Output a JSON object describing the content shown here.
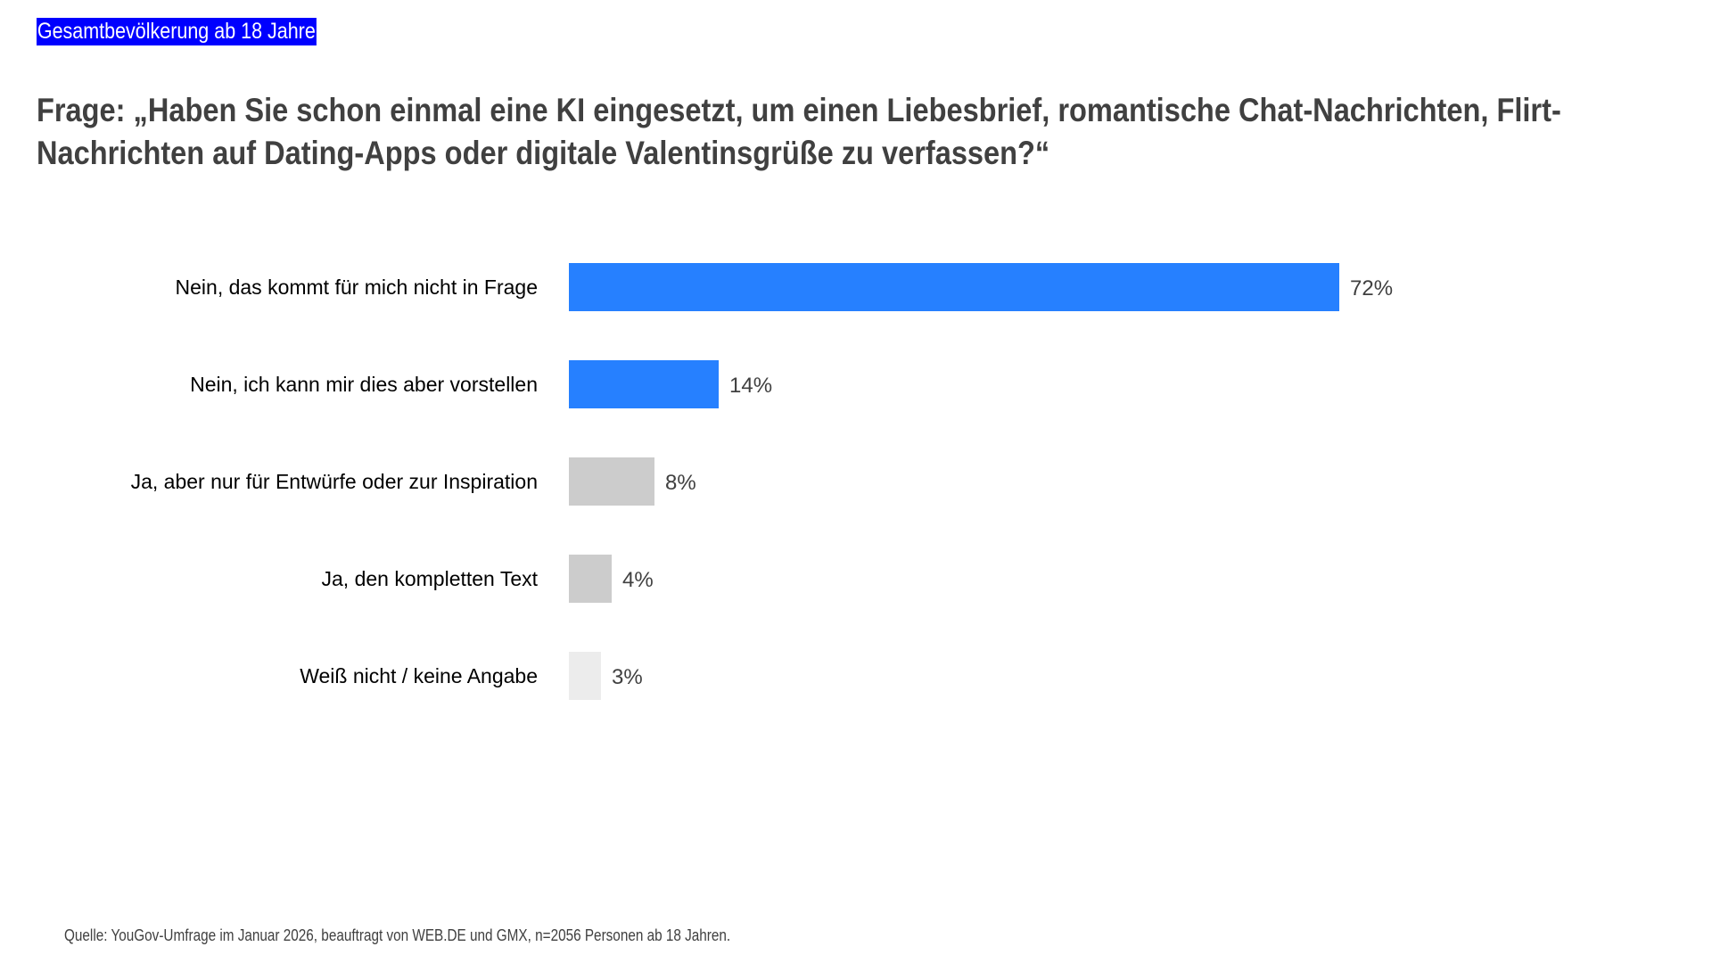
{
  "header": {
    "subtitle": "Gesamtbevölkerung ab 18 Jahre",
    "title": "Frage: „Haben Sie schon einmal eine KI eingesetzt, um einen Liebesbrief, romantische Chat-Nachrichten, Flirt-Nachrichten auf Dating-Apps oder digitale Valentinsgrüße zu verfassen?“"
  },
  "chart_data": {
    "type": "bar",
    "orientation": "horizontal",
    "categories": [
      "Nein, das kommt für mich nicht in Frage",
      "Nein, ich kann mir dies aber vorstellen",
      "Ja, aber nur für Entwürfe oder zur Inspiration",
      "Ja, den kompletten Text",
      "Weiß nicht / keine Angabe"
    ],
    "values": [
      72,
      14,
      8,
      4,
      3
    ],
    "value_labels": [
      "72%",
      "14%",
      "8%",
      "4%",
      "3%"
    ],
    "colors": [
      "#2680ff",
      "#2680ff",
      "#cccccc",
      "#cccccc",
      "#ececec"
    ],
    "unit": "%",
    "xlim": [
      0,
      100
    ],
    "grid": false
  },
  "footer": {
    "source": "Quelle: YouGov-Umfrage im Januar 2026, beauftragt von WEB.DE und GMX, n=2056 Personen ab 18 Jahren."
  }
}
